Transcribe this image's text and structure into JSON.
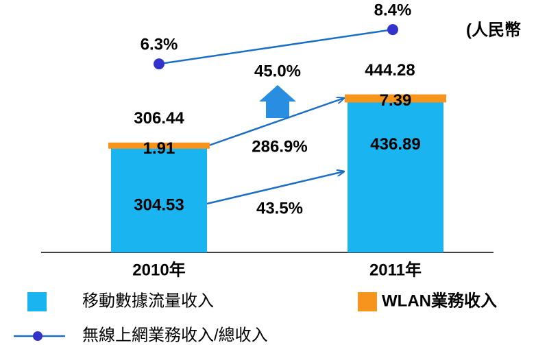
{
  "chart_data": {
    "type": "bar",
    "unit": "(人民幣",
    "categories": [
      "2010年",
      "2011年"
    ],
    "series": [
      {
        "name": "移動數據流量收入",
        "color": "#1ab4f0",
        "values": [
          304.53,
          436.89
        ]
      },
      {
        "name": "WLAN業務收入",
        "color": "#f7941d",
        "values": [
          1.91,
          7.39
        ]
      },
      {
        "name": "無線上網業務收入/總收入",
        "color": "#3333cc",
        "axis": "y2",
        "type": "line",
        "values": [
          6.3,
          8.4
        ],
        "value_labels": [
          "6.3%",
          "8.4%"
        ]
      }
    ],
    "totals": [
      306.44,
      444.28
    ],
    "annotations": [
      "45.0%",
      "286.9%",
      "43.5%"
    ],
    "ylim": [
      0,
      520
    ],
    "y2lim": [
      4,
      10
    ]
  }
}
